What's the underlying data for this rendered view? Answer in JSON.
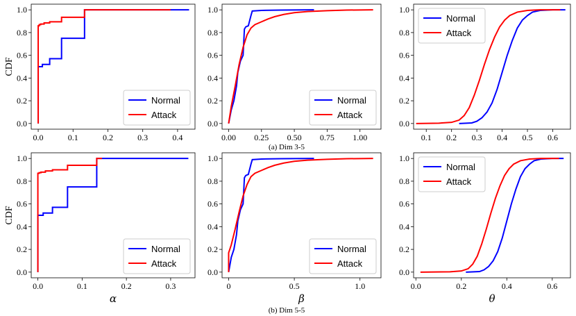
{
  "figure": {
    "caption_top": "(a) Dim 3-5",
    "caption_bottom": "(b) Dim 5-5"
  },
  "legend": {
    "entries": [
      "Normal",
      "Attack"
    ]
  },
  "colors": {
    "normal": "#0000ff",
    "attack": "#ff0000"
  },
  "chart_data": [
    {
      "type": "line",
      "ylabel": "CDF",
      "xlabel": "",
      "xlim": [
        -0.02,
        0.45
      ],
      "ylim": [
        -0.05,
        1.05
      ],
      "xticks": [
        0.0,
        0.1,
        0.2,
        0.3,
        0.4
      ],
      "xticklabels": [
        "0.0",
        "0.1",
        "0.2",
        "0.3",
        "0.4"
      ],
      "yticks": [
        0.0,
        0.2,
        0.4,
        0.6,
        0.8,
        1.0
      ],
      "yticklabels": [
        "0.0",
        "0.2",
        "0.4",
        "0.6",
        "0.8",
        "1.0"
      ],
      "legend_loc": "lower-right",
      "series": [
        {
          "name": "Normal",
          "step": true,
          "x": [
            0.0,
            0.0,
            0.012,
            0.033,
            0.067,
            0.133,
            0.433
          ],
          "y": [
            0.0,
            0.5,
            0.52,
            0.57,
            0.75,
            1.0,
            1.0
          ]
        },
        {
          "name": "Attack",
          "step": true,
          "x": [
            0.0,
            0.0,
            0.003,
            0.007,
            0.017,
            0.033,
            0.067,
            0.133,
            0.38
          ],
          "y": [
            0.0,
            0.86,
            0.87,
            0.875,
            0.885,
            0.895,
            0.935,
            1.0,
            1.0
          ]
        }
      ]
    },
    {
      "type": "line",
      "ylabel": "",
      "xlabel": "",
      "xlim": [
        -0.05,
        1.16
      ],
      "ylim": [
        -0.05,
        1.05
      ],
      "xticks": [
        0.0,
        0.25,
        0.5,
        0.75,
        1.0
      ],
      "xticklabels": [
        "0.00",
        "0.25",
        "0.50",
        "0.75",
        "1.00"
      ],
      "yticks": [
        0.0,
        0.2,
        0.4,
        0.6,
        0.8,
        1.0
      ],
      "yticklabels": [
        "0.0",
        "0.2",
        "0.4",
        "0.6",
        "0.8",
        "1.0"
      ],
      "legend_loc": "lower-right",
      "series": [
        {
          "name": "Normal",
          "step": false,
          "x": [
            0.0,
            0.02,
            0.04,
            0.06,
            0.07,
            0.09,
            0.11,
            0.12,
            0.13,
            0.15,
            0.17,
            0.18,
            0.25,
            0.4,
            0.65
          ],
          "y": [
            0.0,
            0.12,
            0.2,
            0.33,
            0.45,
            0.55,
            0.6,
            0.83,
            0.85,
            0.86,
            0.95,
            0.99,
            0.995,
            0.998,
            1.0
          ]
        },
        {
          "name": "Attack",
          "step": false,
          "x": [
            0.0,
            0.02,
            0.05,
            0.08,
            0.11,
            0.14,
            0.17,
            0.2,
            0.25,
            0.3,
            0.35,
            0.42,
            0.5,
            0.6,
            0.75,
            0.9,
            1.1
          ],
          "y": [
            0.0,
            0.15,
            0.33,
            0.52,
            0.67,
            0.78,
            0.84,
            0.87,
            0.895,
            0.92,
            0.94,
            0.96,
            0.975,
            0.985,
            0.993,
            0.998,
            1.0
          ]
        }
      ]
    },
    {
      "type": "line",
      "ylabel": "",
      "xlabel": "",
      "xlim": [
        0.05,
        0.67
      ],
      "ylim": [
        -0.05,
        1.05
      ],
      "xticks": [
        0.1,
        0.2,
        0.3,
        0.4,
        0.5,
        0.6
      ],
      "xticklabels": [
        "0.1",
        "0.2",
        "0.3",
        "0.4",
        "0.5",
        "0.6"
      ],
      "yticks": [
        0.0,
        0.2,
        0.4,
        0.6,
        0.8,
        1.0
      ],
      "yticklabels": [
        "0.0",
        "0.2",
        "0.4",
        "0.6",
        "0.8",
        "1.0"
      ],
      "legend_loc": "upper-left",
      "series": [
        {
          "name": "Normal",
          "step": false,
          "x": [
            0.23,
            0.28,
            0.3,
            0.32,
            0.34,
            0.36,
            0.38,
            0.4,
            0.42,
            0.44,
            0.46,
            0.48,
            0.5,
            0.52,
            0.55,
            0.6,
            0.65
          ],
          "y": [
            0.0,
            0.005,
            0.02,
            0.05,
            0.1,
            0.18,
            0.3,
            0.45,
            0.6,
            0.73,
            0.84,
            0.91,
            0.95,
            0.98,
            0.995,
            1.0,
            1.0
          ]
        },
        {
          "name": "Attack",
          "step": false,
          "x": [
            0.06,
            0.15,
            0.2,
            0.23,
            0.25,
            0.27,
            0.29,
            0.31,
            0.33,
            0.35,
            0.37,
            0.39,
            0.41,
            0.43,
            0.46,
            0.5,
            0.55,
            0.63
          ],
          "y": [
            0.0,
            0.003,
            0.01,
            0.03,
            0.07,
            0.14,
            0.25,
            0.38,
            0.52,
            0.65,
            0.76,
            0.85,
            0.91,
            0.95,
            0.98,
            0.995,
            1.0,
            1.0
          ]
        }
      ]
    },
    {
      "type": "line",
      "ylabel": "CDF",
      "xlabel": "α",
      "xlim": [
        -0.015,
        0.355
      ],
      "ylim": [
        -0.05,
        1.05
      ],
      "xticks": [
        0.0,
        0.1,
        0.2,
        0.3
      ],
      "xticklabels": [
        "0.0",
        "0.1",
        "0.2",
        "0.3"
      ],
      "yticks": [
        0.0,
        0.2,
        0.4,
        0.6,
        0.8,
        1.0
      ],
      "yticklabels": [
        "0.0",
        "0.2",
        "0.4",
        "0.6",
        "0.8",
        "1.0"
      ],
      "legend_loc": "lower-right",
      "series": [
        {
          "name": "Normal",
          "step": true,
          "x": [
            0.0,
            0.0,
            0.012,
            0.033,
            0.067,
            0.133,
            0.34
          ],
          "y": [
            0.0,
            0.5,
            0.52,
            0.57,
            0.75,
            1.0,
            1.0
          ]
        },
        {
          "name": "Attack",
          "step": true,
          "x": [
            0.0,
            0.0,
            0.003,
            0.007,
            0.017,
            0.033,
            0.067,
            0.133,
            0.145
          ],
          "y": [
            0.0,
            0.87,
            0.875,
            0.88,
            0.89,
            0.9,
            0.94,
            1.0,
            1.0
          ]
        }
      ]
    },
    {
      "type": "line",
      "ylabel": "",
      "xlabel": "β",
      "xlim": [
        -0.05,
        1.16
      ],
      "ylim": [
        -0.05,
        1.05
      ],
      "xticks": [
        0.0,
        0.5,
        1.0
      ],
      "xticklabels": [
        "0",
        "0.5",
        "1.0"
      ],
      "yticks": [
        0.0,
        0.2,
        0.4,
        0.6,
        0.8,
        1.0
      ],
      "yticklabels": [
        "0.0",
        "0.2",
        "0.4",
        "0.6",
        "0.8",
        "1.0"
      ],
      "legend_loc": "lower-right",
      "series": [
        {
          "name": "Normal",
          "step": false,
          "x": [
            0.0,
            0.02,
            0.04,
            0.06,
            0.07,
            0.09,
            0.11,
            0.12,
            0.13,
            0.15,
            0.17,
            0.18,
            0.25,
            0.4,
            0.65
          ],
          "y": [
            0.0,
            0.13,
            0.2,
            0.33,
            0.45,
            0.55,
            0.6,
            0.83,
            0.85,
            0.86,
            0.95,
            0.99,
            0.995,
            0.998,
            1.0
          ]
        },
        {
          "name": "Attack",
          "step": false,
          "x": [
            0.0,
            0.0,
            0.02,
            0.05,
            0.08,
            0.11,
            0.14,
            0.17,
            0.2,
            0.25,
            0.3,
            0.35,
            0.42,
            0.5,
            0.6,
            0.75,
            0.9,
            1.1
          ],
          "y": [
            0.0,
            0.17,
            0.24,
            0.38,
            0.53,
            0.67,
            0.77,
            0.84,
            0.87,
            0.895,
            0.92,
            0.94,
            0.96,
            0.975,
            0.985,
            0.993,
            0.998,
            1.0
          ]
        }
      ]
    },
    {
      "type": "line",
      "ylabel": "",
      "xlabel": "θ",
      "xlim": [
        -0.01,
        0.68
      ],
      "ylim": [
        -0.05,
        1.05
      ],
      "xticks": [
        0.0,
        0.2,
        0.4,
        0.6
      ],
      "xticklabels": [
        "0.0",
        "0.2",
        "0.4",
        "0.6"
      ],
      "yticks": [
        0.0,
        0.2,
        0.4,
        0.6,
        0.8,
        1.0
      ],
      "yticklabels": [
        "0.0",
        "0.2",
        "0.4",
        "0.6",
        "0.8",
        "1.0"
      ],
      "legend_loc": "upper-left",
      "series": [
        {
          "name": "Normal",
          "step": false,
          "x": [
            0.22,
            0.28,
            0.3,
            0.32,
            0.34,
            0.36,
            0.38,
            0.4,
            0.42,
            0.44,
            0.46,
            0.48,
            0.5,
            0.52,
            0.55,
            0.6,
            0.65
          ],
          "y": [
            0.0,
            0.005,
            0.02,
            0.05,
            0.1,
            0.18,
            0.3,
            0.45,
            0.6,
            0.73,
            0.84,
            0.91,
            0.95,
            0.98,
            0.995,
            1.0,
            1.0
          ]
        },
        {
          "name": "Attack",
          "step": false,
          "x": [
            0.02,
            0.15,
            0.2,
            0.23,
            0.25,
            0.27,
            0.29,
            0.31,
            0.33,
            0.35,
            0.37,
            0.39,
            0.41,
            0.43,
            0.46,
            0.5,
            0.55,
            0.63
          ],
          "y": [
            0.0,
            0.003,
            0.01,
            0.03,
            0.07,
            0.14,
            0.25,
            0.38,
            0.52,
            0.65,
            0.76,
            0.85,
            0.91,
            0.95,
            0.98,
            0.995,
            1.0,
            1.0
          ]
        }
      ]
    }
  ]
}
